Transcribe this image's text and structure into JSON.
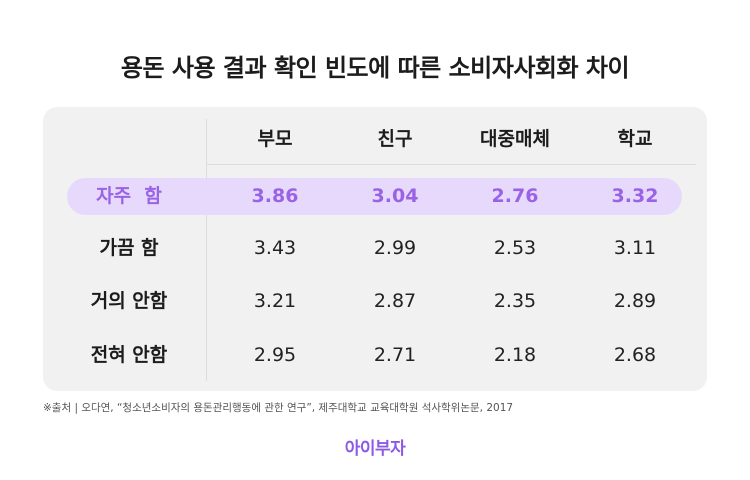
{
  "title": "용돈 사용 결과 확인 빈도에 따른 소비자사회화 차이",
  "table": {
    "columns": [
      "부모",
      "친구",
      "대중매체",
      "학교"
    ],
    "rows": [
      {
        "label": "자주  함",
        "values": [
          "3.86",
          "3.04",
          "2.76",
          "3.32"
        ]
      },
      {
        "label": "가끔 함",
        "values": [
          "3.43",
          "2.99",
          "2.53",
          "3.11"
        ]
      },
      {
        "label": "거의 안함",
        "values": [
          "3.21",
          "2.87",
          "2.35",
          "2.89"
        ]
      },
      {
        "label": "전혀 안함",
        "values": [
          "2.95",
          "2.71",
          "2.18",
          "2.68"
        ]
      }
    ]
  },
  "source": "※출처 | 오다연, “청소년소비자의 용돈관리행동에 관한 연구”, 제주대학교 교육대학원 석사학위논문, 2017",
  "logo": "아이부자",
  "colors": {
    "highlight_bg": "#e6d9fb",
    "highlight_text": "#9a63e6",
    "card_bg": "#f1f1f1"
  }
}
